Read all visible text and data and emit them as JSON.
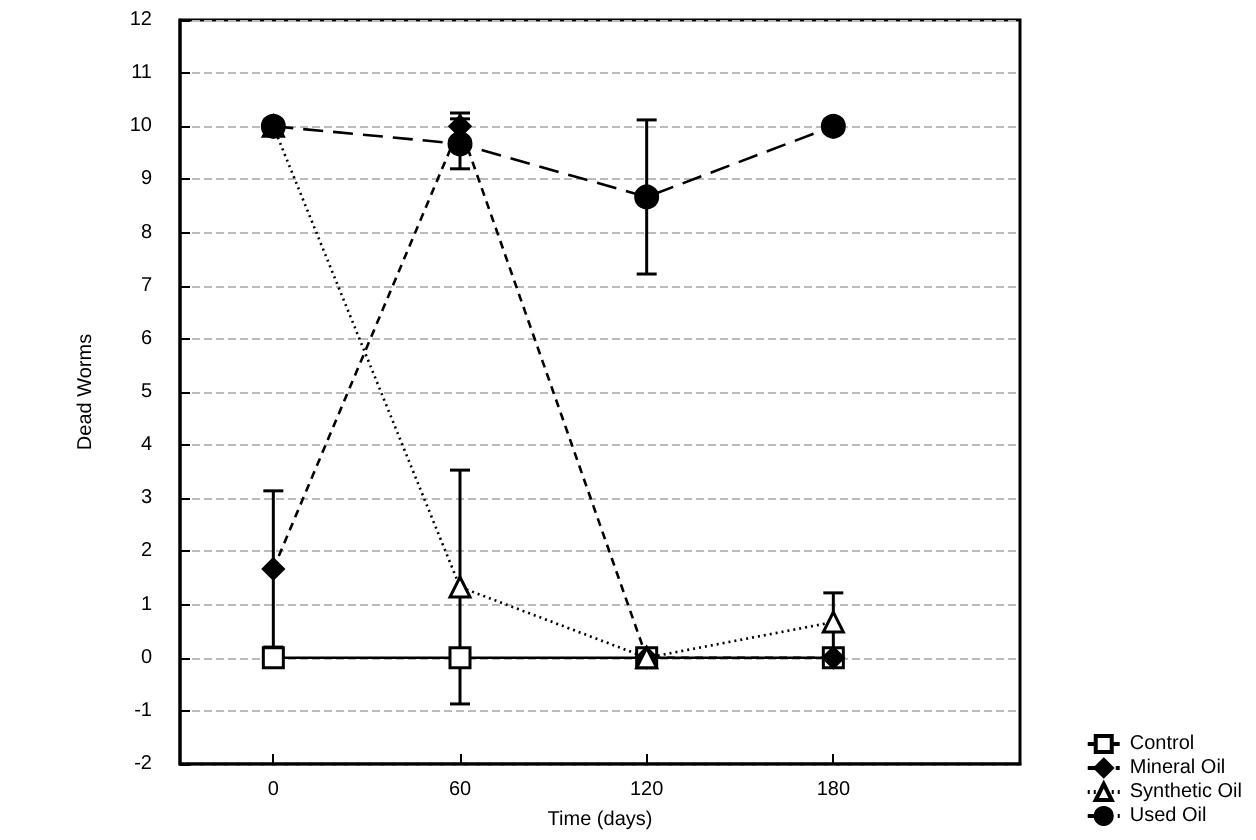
{
  "chart_data": {
    "type": "line",
    "xlabel": "Time (days)",
    "ylabel": "Dead Worms",
    "x": [
      0,
      60,
      120,
      180
    ],
    "xlim": [
      -30,
      240
    ],
    "xticks": [
      0,
      60,
      120,
      180
    ],
    "ylim": [
      -2,
      12
    ],
    "yticks": [
      -2,
      -1,
      0,
      1,
      2,
      3,
      4,
      5,
      6,
      7,
      8,
      9,
      10,
      11,
      12
    ],
    "grid": "y",
    "legend": "bottom right",
    "series": [
      {
        "name": "Control",
        "color": "#000000",
        "marker": "square",
        "line_style": "solid",
        "values": [
          0,
          0,
          0,
          0
        ]
      },
      {
        "name": "Mineral Oil",
        "color": "#000000",
        "marker": "diamond",
        "line_style": "dashed",
        "values": [
          1.67,
          10,
          0,
          0
        ],
        "errors": [
          1.47,
          0.25,
          null,
          null
        ]
      },
      {
        "name": "Synthetic Oil",
        "color": "#000000",
        "marker": "triangle",
        "line_style": "dotted",
        "values": [
          10,
          1.33,
          0,
          0.67
        ],
        "errors": [
          null,
          2.2,
          null,
          0.55
        ]
      },
      {
        "name": "Used Oil",
        "color": "#000000",
        "marker": "circle",
        "line_style": "longdash",
        "values": [
          10,
          9.67,
          8.67,
          10
        ],
        "errors": [
          null,
          0.47,
          1.45,
          null
        ]
      }
    ]
  }
}
